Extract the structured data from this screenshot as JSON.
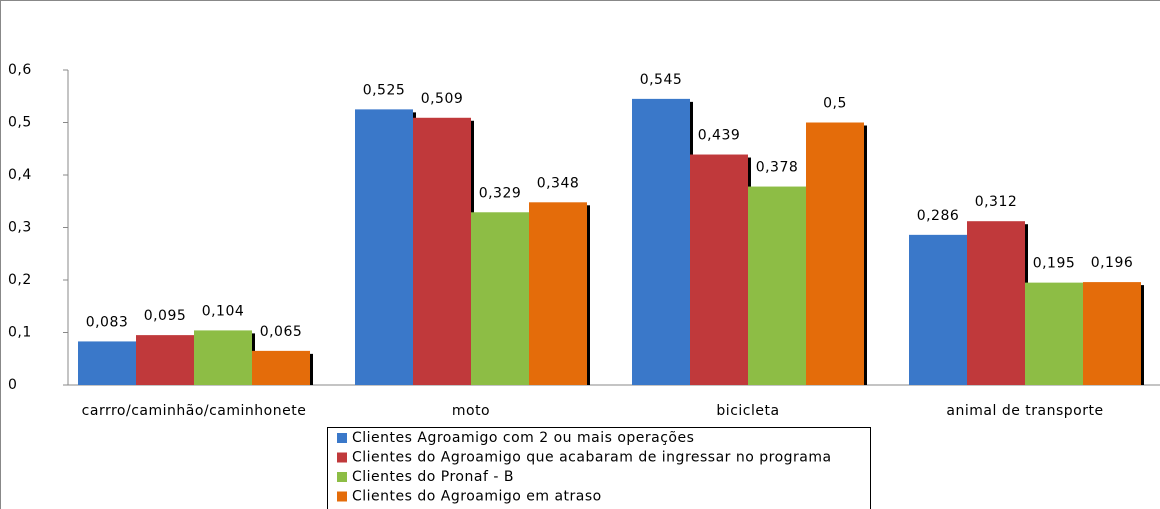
{
  "chart_data": {
    "type": "bar",
    "categories": [
      "carrro/caminhão/caminhonete",
      "moto",
      "bicicleta",
      "animal de transporte"
    ],
    "series": [
      {
        "name": "Clientes Agroamigo com 2 ou mais operações",
        "color": "#3a78c9",
        "values": [
          0.083,
          0.525,
          0.545,
          0.286
        ],
        "value_labels": [
          "0,083",
          "0,525",
          "0,545",
          "0,286"
        ]
      },
      {
        "name": "Clientes do Agroamigo que acabaram de ingressar no programa",
        "color": "#c0393b",
        "values": [
          0.095,
          0.509,
          0.439,
          0.312
        ],
        "value_labels": [
          "0,095",
          "0,509",
          "0,439",
          "0,312"
        ]
      },
      {
        "name": "Clientes do Pronaf - B",
        "color": "#8dbd45",
        "values": [
          0.104,
          0.329,
          0.378,
          0.195
        ],
        "value_labels": [
          "0,104",
          "0,329",
          "0,378",
          "0,195"
        ]
      },
      {
        "name": "Clientes do Agroamigo em atraso",
        "color": "#e46c0a",
        "values": [
          0.065,
          0.348,
          0.5,
          0.196
        ],
        "value_labels": [
          "0,065",
          "0,348",
          "0,5",
          "0,196"
        ]
      }
    ],
    "ylim": [
      0,
      0.6
    ],
    "yticks": [
      0,
      {
        "value": 0.1,
        "label": "0,1"
      },
      {
        "value": 0.2,
        "label": "0,2"
      },
      {
        "value": 0.3,
        "label": "0,3"
      },
      {
        "value": 0.4,
        "label": "0,4"
      },
      {
        "value": 0.5,
        "label": "0,5"
      },
      {
        "value": 0.6,
        "label": "0,6"
      }
    ],
    "grid": false,
    "legend": "bottom"
  }
}
